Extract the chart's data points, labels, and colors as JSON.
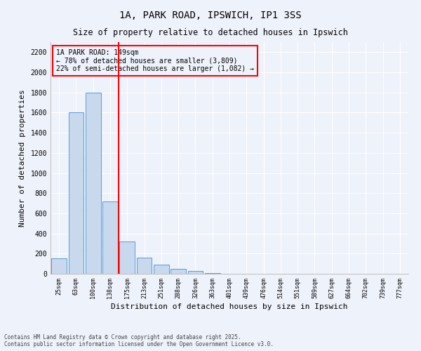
{
  "title1": "1A, PARK ROAD, IPSWICH, IP1 3SS",
  "title2": "Size of property relative to detached houses in Ipswich",
  "xlabel": "Distribution of detached houses by size in Ipswich",
  "ylabel": "Number of detached properties",
  "categories": [
    "25sqm",
    "63sqm",
    "100sqm",
    "138sqm",
    "175sqm",
    "213sqm",
    "251sqm",
    "288sqm",
    "326sqm",
    "363sqm",
    "401sqm",
    "439sqm",
    "476sqm",
    "514sqm",
    "551sqm",
    "589sqm",
    "627sqm",
    "664sqm",
    "702sqm",
    "739sqm",
    "777sqm"
  ],
  "values": [
    150,
    1600,
    1800,
    720,
    320,
    160,
    90,
    50,
    25,
    5,
    3,
    2,
    1,
    1,
    0,
    0,
    0,
    0,
    0,
    0,
    0
  ],
  "bar_color": "#c8d9ee",
  "bar_edge_color": "#5b9bd5",
  "vline_x": 3.5,
  "vline_color": "red",
  "annotation_text": "1A PARK ROAD: 149sqm\n← 78% of detached houses are smaller (3,809)\n22% of semi-detached houses are larger (1,082) →",
  "annotation_box_color": "red",
  "ylim": [
    0,
    2300
  ],
  "yticks": [
    0,
    200,
    400,
    600,
    800,
    1000,
    1200,
    1400,
    1600,
    1800,
    2000,
    2200
  ],
  "background_color": "#eef2fb",
  "grid_color": "#ffffff",
  "footer": "Contains HM Land Registry data © Crown copyright and database right 2025.\nContains public sector information licensed under the Open Government Licence v3.0."
}
